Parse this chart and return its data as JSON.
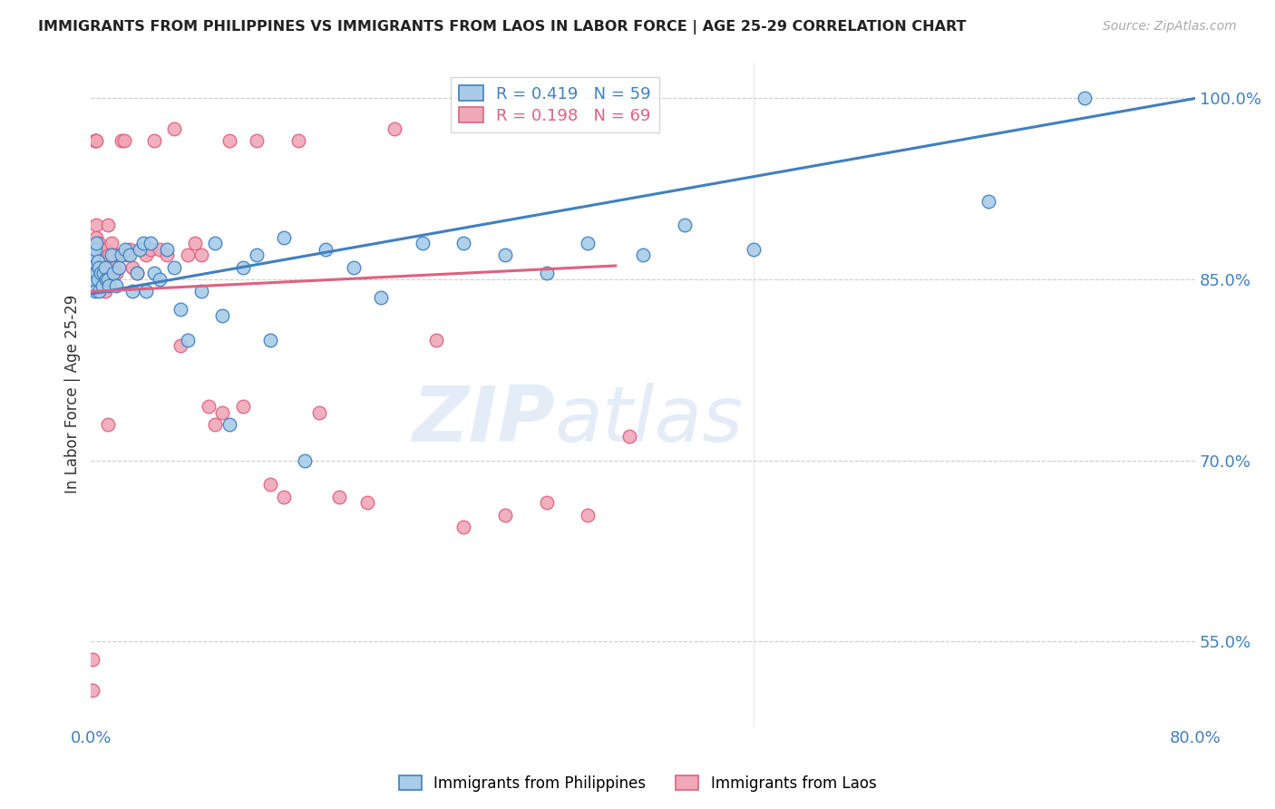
{
  "title": "IMMIGRANTS FROM PHILIPPINES VS IMMIGRANTS FROM LAOS IN LABOR FORCE | AGE 25-29 CORRELATION CHART",
  "source": "Source: ZipAtlas.com",
  "ylabel": "In Labor Force | Age 25-29",
  "xlim": [
    0.0,
    0.8
  ],
  "ylim": [
    0.48,
    1.03
  ],
  "yticks": [
    0.55,
    0.7,
    0.85,
    1.0
  ],
  "ytick_labels": [
    "55.0%",
    "70.0%",
    "85.0%",
    "100.0%"
  ],
  "philippines_R": 0.419,
  "philippines_N": 59,
  "laos_R": 0.198,
  "laos_N": 69,
  "philippines_color": "#A8CCE8",
  "laos_color": "#F0A8B8",
  "philippines_line_color": "#4080C0",
  "laos_line_color": "#E06080",
  "legend_philippines": "Immigrants from Philippines",
  "legend_laos": "Immigrants from Laos",
  "background_color": "#FFFFFF",
  "grid_color": "#CCCCCC",
  "axis_label_color": "#4080C0",
  "title_color": "#222222",
  "philippines_x": [
    0.001,
    0.002,
    0.002,
    0.003,
    0.003,
    0.004,
    0.004,
    0.005,
    0.005,
    0.006,
    0.006,
    0.007,
    0.008,
    0.009,
    0.01,
    0.011,
    0.012,
    0.013,
    0.015,
    0.016,
    0.018,
    0.02,
    0.022,
    0.025,
    0.028,
    0.03,
    0.033,
    0.035,
    0.038,
    0.04,
    0.043,
    0.046,
    0.05,
    0.055,
    0.06,
    0.065,
    0.07,
    0.08,
    0.09,
    0.095,
    0.1,
    0.11,
    0.12,
    0.13,
    0.14,
    0.155,
    0.17,
    0.19,
    0.21,
    0.24,
    0.27,
    0.3,
    0.33,
    0.36,
    0.4,
    0.43,
    0.48,
    0.65,
    0.72
  ],
  "philippines_y": [
    0.865,
    0.85,
    0.87,
    0.84,
    0.875,
    0.855,
    0.88,
    0.85,
    0.865,
    0.86,
    0.84,
    0.855,
    0.845,
    0.855,
    0.86,
    0.85,
    0.85,
    0.845,
    0.87,
    0.855,
    0.845,
    0.86,
    0.87,
    0.875,
    0.87,
    0.84,
    0.855,
    0.875,
    0.88,
    0.84,
    0.88,
    0.855,
    0.85,
    0.875,
    0.86,
    0.825,
    0.8,
    0.84,
    0.88,
    0.82,
    0.73,
    0.86,
    0.87,
    0.8,
    0.885,
    0.7,
    0.875,
    0.86,
    0.835,
    0.88,
    0.88,
    0.87,
    0.855,
    0.88,
    0.87,
    0.895,
    0.875,
    0.915,
    1.0
  ],
  "laos_x": [
    0.001,
    0.001,
    0.002,
    0.002,
    0.003,
    0.003,
    0.003,
    0.004,
    0.004,
    0.005,
    0.005,
    0.006,
    0.006,
    0.007,
    0.007,
    0.008,
    0.008,
    0.009,
    0.009,
    0.01,
    0.01,
    0.011,
    0.012,
    0.013,
    0.014,
    0.015,
    0.016,
    0.017,
    0.018,
    0.02,
    0.022,
    0.024,
    0.026,
    0.028,
    0.03,
    0.033,
    0.036,
    0.04,
    0.043,
    0.046,
    0.05,
    0.055,
    0.06,
    0.065,
    0.07,
    0.075,
    0.08,
    0.085,
    0.09,
    0.095,
    0.1,
    0.11,
    0.12,
    0.13,
    0.14,
    0.15,
    0.165,
    0.18,
    0.2,
    0.22,
    0.25,
    0.27,
    0.3,
    0.33,
    0.36,
    0.39,
    0.003,
    0.004,
    0.012
  ],
  "laos_y": [
    0.535,
    0.51,
    0.87,
    0.855,
    0.875,
    0.855,
    0.965,
    0.895,
    0.885,
    0.875,
    0.86,
    0.88,
    0.86,
    0.86,
    0.875,
    0.875,
    0.875,
    0.86,
    0.855,
    0.865,
    0.84,
    0.875,
    0.895,
    0.87,
    0.86,
    0.88,
    0.87,
    0.86,
    0.855,
    0.87,
    0.965,
    0.965,
    0.87,
    0.875,
    0.86,
    0.855,
    0.875,
    0.87,
    0.875,
    0.965,
    0.875,
    0.87,
    0.975,
    0.795,
    0.87,
    0.88,
    0.87,
    0.745,
    0.73,
    0.74,
    0.965,
    0.745,
    0.965,
    0.68,
    0.67,
    0.965,
    0.74,
    0.67,
    0.665,
    0.975,
    0.8,
    0.645,
    0.655,
    0.665,
    0.655,
    0.72,
    0.965,
    0.965,
    0.73
  ]
}
